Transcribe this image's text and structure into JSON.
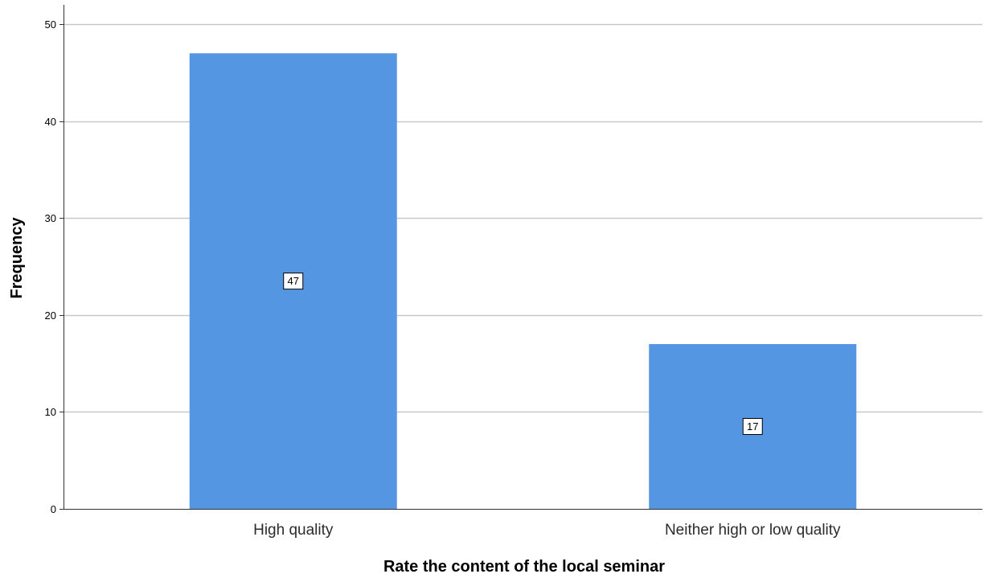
{
  "chart_data": {
    "type": "bar",
    "title": "",
    "xlabel": "Rate the content of the local seminar",
    "ylabel": "Frequency",
    "categories": [
      "High quality",
      "Neither high or low quality"
    ],
    "values": [
      47,
      17
    ],
    "data_labels": [
      "47",
      "17"
    ],
    "ylim": [
      0,
      52
    ],
    "yticks": [
      0,
      10,
      20,
      30,
      40,
      50
    ],
    "ytick_labels": [
      "0",
      "10",
      "20",
      "30",
      "40",
      "50"
    ],
    "grid": true,
    "legend": "none",
    "colors": {
      "bar": "#5596e2",
      "grid": "#c8c8c8",
      "axis": "#333333"
    }
  }
}
